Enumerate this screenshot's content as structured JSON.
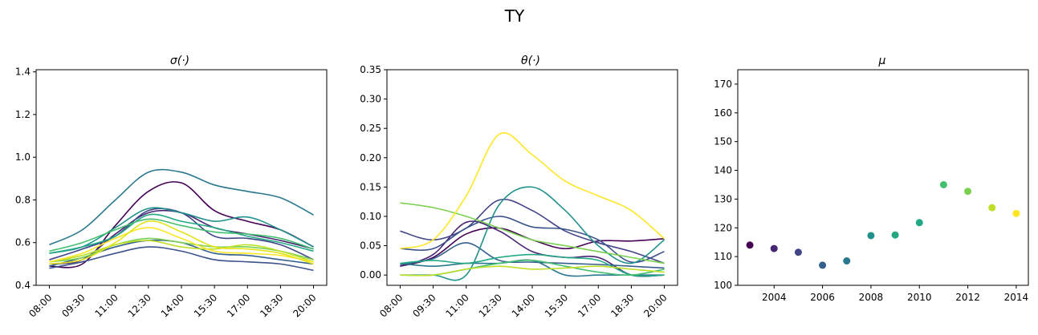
{
  "figure": {
    "suptitle": "TY"
  },
  "palette": [
    "#440154",
    "#482475",
    "#414487",
    "#355f8d",
    "#2a788e",
    "#21918c",
    "#22a884",
    "#44bf70",
    "#7ad151",
    "#bddf26",
    "#fde725"
  ],
  "chart_data": [
    {
      "id": "sigma",
      "type": "line",
      "title": "σ(·)",
      "xlabel": "",
      "ylabel": "",
      "x_ticks": [
        "08:00",
        "09:30",
        "11:00",
        "12:30",
        "14:00",
        "15:30",
        "17:00",
        "18:30",
        "20:00"
      ],
      "x": [
        0,
        1,
        2,
        3,
        4,
        5,
        6,
        7,
        8
      ],
      "ylim": [
        0.4,
        1.41
      ],
      "yticks": [
        0.4,
        0.6,
        0.8,
        1.0,
        1.2,
        1.4
      ],
      "ytick_labels": [
        "0.4",
        "0.6",
        "0.8",
        "1.0",
        "1.2",
        "1.4"
      ],
      "series": [
        {
          "color": "#440154",
          "values": [
            0.49,
            0.5,
            0.68,
            0.84,
            0.88,
            0.75,
            0.7,
            0.66,
            0.58
          ]
        },
        {
          "color": "#482475",
          "values": [
            0.5,
            0.52,
            0.64,
            0.74,
            0.74,
            0.67,
            0.64,
            0.61,
            0.57
          ]
        },
        {
          "color": "#414487",
          "values": [
            0.52,
            0.57,
            0.63,
            0.75,
            0.74,
            0.63,
            0.62,
            0.59,
            0.52
          ]
        },
        {
          "color": "#355f8d",
          "values": [
            0.49,
            0.53,
            0.58,
            0.61,
            0.6,
            0.55,
            0.54,
            0.52,
            0.5
          ]
        },
        {
          "color": "#3b528b",
          "values": [
            0.48,
            0.51,
            0.55,
            0.58,
            0.56,
            0.52,
            0.51,
            0.5,
            0.47
          ]
        },
        {
          "color": "#2a788e",
          "values": [
            0.59,
            0.66,
            0.8,
            0.93,
            0.93,
            0.87,
            0.84,
            0.81,
            0.73
          ]
        },
        {
          "color": "#21918c",
          "values": [
            0.55,
            0.58,
            0.67,
            0.76,
            0.74,
            0.7,
            0.72,
            0.66,
            0.58
          ]
        },
        {
          "color": "#22a884",
          "values": [
            0.55,
            0.58,
            0.63,
            0.73,
            0.7,
            0.67,
            0.63,
            0.6,
            0.56
          ]
        },
        {
          "color": "#44bf70",
          "values": [
            0.56,
            0.6,
            0.66,
            0.71,
            0.68,
            0.65,
            0.64,
            0.62,
            0.57
          ]
        },
        {
          "color": "#7ad151",
          "values": [
            0.51,
            0.53,
            0.59,
            0.62,
            0.6,
            0.58,
            0.58,
            0.56,
            0.52
          ]
        },
        {
          "color": "#bddf26",
          "values": [
            0.51,
            0.54,
            0.59,
            0.61,
            0.58,
            0.57,
            0.59,
            0.56,
            0.51
          ]
        },
        {
          "color": "#fde725",
          "values": [
            0.51,
            0.55,
            0.62,
            0.67,
            0.62,
            0.56,
            0.55,
            0.54,
            0.51
          ]
        },
        {
          "color": "#e3e418",
          "values": [
            0.5,
            0.52,
            0.6,
            0.7,
            0.65,
            0.58,
            0.57,
            0.55,
            0.5
          ]
        }
      ]
    },
    {
      "id": "theta",
      "type": "line",
      "title": "θ(·)",
      "xlabel": "",
      "ylabel": "",
      "x_ticks": [
        "08:00",
        "09:30",
        "11:00",
        "12:30",
        "14:00",
        "15:30",
        "17:00",
        "18:30",
        "20:00"
      ],
      "x": [
        0,
        1,
        2,
        3,
        4,
        5,
        6,
        7,
        8
      ],
      "ylim": [
        -0.0175,
        0.35
      ],
      "yticks": [
        0.0,
        0.05,
        0.1,
        0.15,
        0.2,
        0.25,
        0.3,
        0.35
      ],
      "ytick_labels": [
        "0.00",
        "0.05",
        "0.10",
        "0.15",
        "0.20",
        "0.25",
        "0.30",
        "0.35"
      ],
      "series": [
        {
          "color": "#440154",
          "values": [
            0.015,
            0.03,
            0.07,
            0.08,
            0.06,
            0.045,
            0.058,
            0.058,
            0.062
          ]
        },
        {
          "color": "#482475",
          "values": [
            0.015,
            0.035,
            0.09,
            0.075,
            0.04,
            0.03,
            0.03,
            0.0,
            0.0
          ]
        },
        {
          "color": "#414487",
          "values": [
            0.075,
            0.06,
            0.08,
            0.128,
            0.11,
            0.075,
            0.055,
            0.04,
            0.02
          ]
        },
        {
          "color": "#3b528b",
          "values": [
            0.045,
            0.045,
            0.08,
            0.1,
            0.082,
            0.078,
            0.06,
            0.022,
            0.04
          ]
        },
        {
          "color": "#355f8d",
          "values": [
            0.018,
            0.028,
            0.055,
            0.025,
            0.022,
            0.02,
            0.018,
            0.015,
            0.012
          ]
        },
        {
          "color": "#2a788e",
          "values": [
            0.02,
            0.015,
            0.02,
            0.02,
            0.025,
            0.0,
            0.0,
            0.0,
            0.0
          ]
        },
        {
          "color": "#21918c",
          "values": [
            0.0,
            0.0,
            0.0,
            0.12,
            0.15,
            0.11,
            0.05,
            0.02,
            0.06
          ]
        },
        {
          "color": "#22a884",
          "values": [
            0.02,
            0.025,
            0.02,
            0.03,
            0.035,
            0.03,
            0.025,
            0.0,
            0.0
          ]
        },
        {
          "color": "#44bf70",
          "values": [
            0.0,
            0.0,
            0.01,
            0.02,
            0.025,
            0.015,
            0.005,
            0.0,
            0.01
          ]
        },
        {
          "color": "#7ad151",
          "values": [
            0.123,
            0.115,
            0.1,
            0.08,
            0.06,
            0.05,
            0.04,
            0.03,
            0.02
          ]
        },
        {
          "color": "#bddf26",
          "values": [
            0.0,
            0.0,
            0.01,
            0.015,
            0.01,
            0.012,
            0.015,
            0.01,
            0.005
          ]
        },
        {
          "color": "#fde725",
          "values": [
            0.045,
            0.06,
            0.135,
            0.24,
            0.205,
            0.16,
            0.135,
            0.11,
            0.062
          ]
        }
      ]
    },
    {
      "id": "mu",
      "type": "scatter",
      "title": "μ",
      "xlabel": "",
      "ylabel": "",
      "xlim": [
        2002.5,
        2014.5
      ],
      "ylim": [
        100,
        175
      ],
      "xticks": [
        2004,
        2006,
        2008,
        2010,
        2012,
        2014
      ],
      "xtick_labels": [
        "2004",
        "2006",
        "2008",
        "2010",
        "2012",
        "2014"
      ],
      "yticks": [
        100,
        110,
        120,
        130,
        140,
        150,
        160,
        170
      ],
      "ytick_labels": [
        "100",
        "110",
        "120",
        "130",
        "140",
        "150",
        "160",
        "170"
      ],
      "points": [
        {
          "x": 2003,
          "y": 114.0,
          "color": "#440154"
        },
        {
          "x": 2004,
          "y": 112.8,
          "color": "#482475"
        },
        {
          "x": 2005,
          "y": 111.5,
          "color": "#414487"
        },
        {
          "x": 2006,
          "y": 107.0,
          "color": "#355f8d"
        },
        {
          "x": 2007,
          "y": 108.5,
          "color": "#2a788e"
        },
        {
          "x": 2008,
          "y": 117.3,
          "color": "#21918c"
        },
        {
          "x": 2009,
          "y": 117.5,
          "color": "#22a884"
        },
        {
          "x": 2010,
          "y": 121.8,
          "color": "#22a884"
        },
        {
          "x": 2011,
          "y": 135.0,
          "color": "#44bf70"
        },
        {
          "x": 2012,
          "y": 132.7,
          "color": "#7ad151"
        },
        {
          "x": 2013,
          "y": 127.0,
          "color": "#bddf26"
        },
        {
          "x": 2014,
          "y": 125.0,
          "color": "#fde725"
        }
      ]
    }
  ]
}
